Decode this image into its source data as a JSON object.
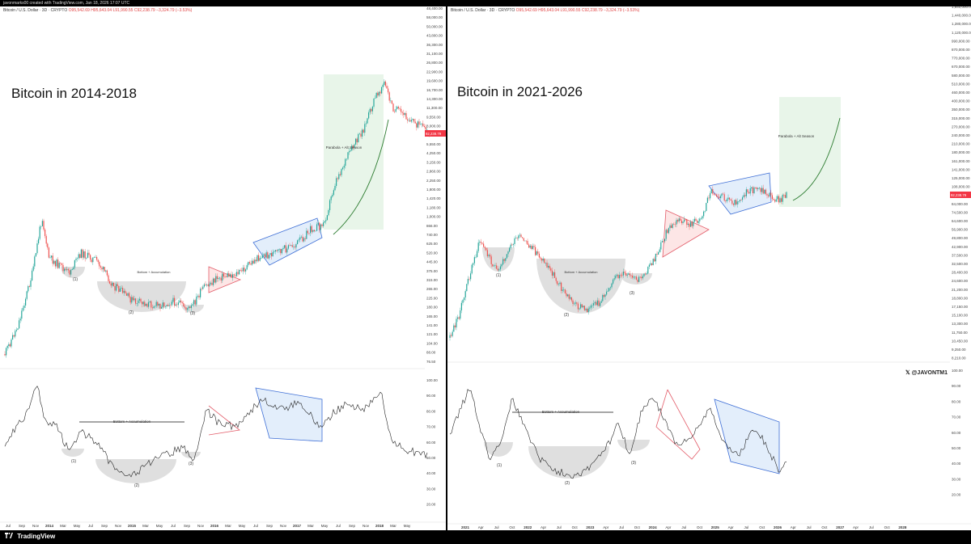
{
  "header": {
    "text": "javonmarks00 created with TradingView.com, Jan 18, 2026 17:07 UTC"
  },
  "footer": {
    "brand": "TradingView"
  },
  "watermark": {
    "handle": "@JAVONTM1",
    "icon": "x-logo-icon"
  },
  "colors": {
    "up": "#26a69a",
    "down": "#ef5350",
    "price_tag": "#f23645",
    "green_zone": "#e8f5e9",
    "blue_zone": "#e3eefb",
    "red_zone": "#fde6e6",
    "gray_zone": "#d9d9d9",
    "curve": "#2e7d32",
    "blue_line": "#3f6fd6",
    "red_line": "#e35d6a"
  },
  "charts": [
    {
      "id": "left",
      "symbol_line": "Bitcoin / U.S. Dollar · 3D · CRYPTO",
      "ohlc_text": "O95,542.69 H95,643.04 L91,990.55 C92,238.79 −3,324.79 (−3.53%)",
      "title": "Bitcoin in 2014-2018",
      "notes": {
        "parabola": "Parabola + Alt Season",
        "bottom_price": "Bottom + Accumulation",
        "bottom_osc": "Bottom + Accumulation",
        "p1": "(1)",
        "p2": "(2)",
        "p3": "(3)",
        "o1": "(1)",
        "o2": "(2)",
        "o3": "(3)"
      },
      "price_axis": [
        "48,400.00",
        "58,000.00",
        "50,000.00",
        "43,800.00",
        "36,300.00",
        "31,100.00",
        "26,800.00",
        "22,900.00",
        "19,600.00",
        "16,700.00",
        "14,300.00",
        "11,300.00",
        "9,550.00",
        "8,000.00",
        "6,890.00",
        "5,550.00",
        "4,250.00",
        "3,150.00",
        "2,860.00",
        "2,250.00",
        "1,800.00",
        "1,420.00",
        "1,180.00",
        "1,000.00",
        "866.00",
        "740.00",
        "625.00",
        "520.00",
        "445.00",
        "375.00",
        "315.00",
        "265.00",
        "225.00",
        "180.00",
        "165.00",
        "141.00",
        "121.00",
        "104.00",
        "88.00",
        "76.50"
      ],
      "price_tag": "92,238.79",
      "osc_axis": [
        "100.00",
        "90.00",
        "80.00",
        "70.00",
        "60.00",
        "50.00",
        "40.00",
        "30.00",
        "20.00"
      ],
      "time_axis": [
        "Jul",
        "Sep",
        "Nov",
        "2014",
        "Mar",
        "May",
        "Jul",
        "Sep",
        "Nov",
        "2015",
        "Mar",
        "May",
        "Jul",
        "Sep",
        "Nov",
        "2016",
        "Mar",
        "May",
        "Jul",
        "Sep",
        "Nov",
        "2017",
        "Mar",
        "May",
        "Jul",
        "Sep",
        "Nov",
        "2018",
        "Mar",
        "May"
      ]
    },
    {
      "id": "right",
      "symbol_line": "Bitcoin / U.S. Dollar · 3D · CRYPTO",
      "ohlc_text": "O95,542.69 H95,643.04 L91,990.55 C92,238.79 −3,324.79 (−3.53%)",
      "title": "Bitcoin in 2021-2026",
      "notes": {
        "parabola": "Parabola + Alt Season",
        "bottom_price": "Bottom + Accumulation",
        "bottom_osc": "Bottom + Accumulation",
        "p1": "(1)",
        "p2": "(2)",
        "p3": "(3)",
        "o1": "(1)",
        "o2": "(2)",
        "o3": "(3)"
      },
      "price_axis": [
        "1,640,000.00",
        "1,440,000.00",
        "1,280,000.00",
        "1,120,000.00",
        "990,000.00",
        "870,000.00",
        "770,000.00",
        "670,000.00",
        "580,000.00",
        "510,000.00",
        "460,000.00",
        "400,000.00",
        "350,000.00",
        "315,000.00",
        "270,000.00",
        "240,000.00",
        "210,000.00",
        "180,000.00",
        "161,000.00",
        "141,000.00",
        "125,000.00",
        "108,000.00",
        "96,000.00",
        "84,000.00",
        "74,500.00",
        "64,600.00",
        "56,900.00",
        "49,800.00",
        "42,900.00",
        "37,500.00",
        "32,500.00",
        "28,400.00",
        "24,600.00",
        "21,200.00",
        "18,800.00",
        "17,150.00",
        "15,100.00",
        "13,300.00",
        "11,750.00",
        "10,450.00",
        "9,250.00",
        "8,210.00"
      ],
      "price_tag": "92,238.79",
      "osc_axis": [
        "100.00",
        "90.00",
        "80.00",
        "70.00",
        "60.00",
        "50.00",
        "40.00",
        "30.00",
        "20.00"
      ],
      "time_axis": [
        "2021",
        "Apr",
        "Jul",
        "Oct",
        "2022",
        "Apr",
        "Jul",
        "Oct",
        "2023",
        "Apr",
        "Jul",
        "Oct",
        "2024",
        "Apr",
        "Jul",
        "Oct",
        "2025",
        "Apr",
        "Jul",
        "Oct",
        "2026",
        "Apr",
        "Jul",
        "Oct",
        "2027",
        "Apr",
        "Jul",
        "Oct",
        "2028"
      ]
    }
  ],
  "chart_data": [
    {
      "type": "line",
      "title": "Bitcoin in 2014-2018",
      "xlabel": "",
      "ylabel": "",
      "yscale": "log",
      "ylim": [
        76.5,
        48400
      ],
      "x": [
        "2013-07",
        "2013-10",
        "2013-12",
        "2014-03",
        "2014-06",
        "2014-09",
        "2015-01",
        "2015-04",
        "2015-07",
        "2015-10",
        "2016-01",
        "2016-04",
        "2016-07",
        "2016-10",
        "2017-01",
        "2017-04",
        "2017-07",
        "2017-10",
        "2017-12",
        "2018-02",
        "2018-05"
      ],
      "series": [
        {
          "values": [
            90,
            200,
            1100,
            550,
            620,
            420,
            220,
            240,
            280,
            260,
            420,
            440,
            650,
            700,
            1000,
            1200,
            2500,
            6000,
            17000,
            9500,
            8000
          ]
        }
      ],
      "oscillator": {
        "ylim": [
          20,
          100
        ],
        "values": [
          55,
          48,
          95,
          60,
          70,
          45,
          30,
          35,
          50,
          45,
          65,
          58,
          80,
          60,
          75,
          65,
          85,
          70,
          92,
          55,
          42
        ]
      }
    },
    {
      "type": "line",
      "title": "Bitcoin in 2021-2026",
      "xlabel": "",
      "ylabel": "",
      "yscale": "log",
      "ylim": [
        8210,
        1640000
      ],
      "x": [
        "2020-11",
        "2021-01",
        "2021-04",
        "2021-07",
        "2021-10",
        "2022-01",
        "2022-04",
        "2022-07",
        "2022-10",
        "2023-01",
        "2023-04",
        "2023-07",
        "2023-10",
        "2024-01",
        "2024-03",
        "2024-07",
        "2024-10",
        "2024-12",
        "2025-04",
        "2025-07",
        "2025-10",
        "2026-01"
      ],
      "series": [
        {
          "values": [
            13000,
            35000,
            60000,
            32000,
            65000,
            42000,
            40000,
            21000,
            19000,
            17000,
            28000,
            30000,
            35000,
            45000,
            70000,
            58000,
            68000,
            100000,
            80000,
            115000,
            110000,
            92000
          ]
        }
      ],
      "oscillator": {
        "ylim": [
          20,
          100
        ],
        "values": [
          80,
          90,
          70,
          45,
          70,
          55,
          45,
          35,
          30,
          32,
          65,
          70,
          55,
          68,
          85,
          45,
          60,
          88,
          48,
          75,
          58,
          42
        ]
      }
    }
  ]
}
